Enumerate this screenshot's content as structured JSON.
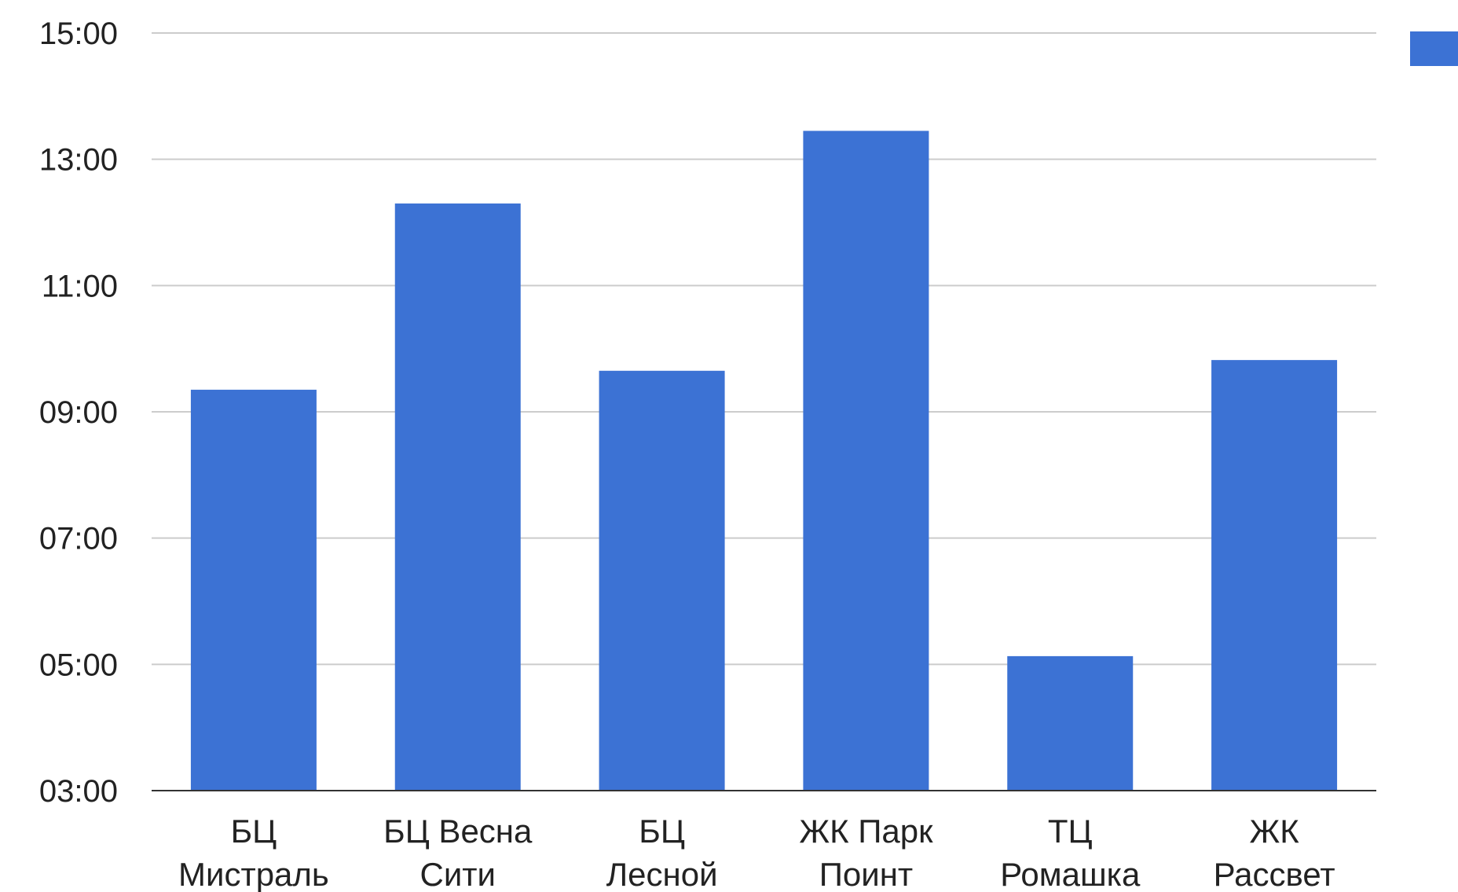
{
  "chart_data": {
    "type": "bar",
    "categories": [
      [
        "БЦ",
        "Мистраль"
      ],
      [
        "БЦ Весна",
        "Сити"
      ],
      [
        "БЦ",
        "Лесной"
      ],
      [
        "ЖК Парк",
        "Поинт"
      ],
      [
        "ТЦ",
        "Ромашка"
      ],
      [
        "ЖК",
        "Рассвет"
      ]
    ],
    "values": [
      9.35,
      12.3,
      9.65,
      13.45,
      5.13,
      9.82
    ],
    "yticks": [
      {
        "value": 3,
        "label": "03:00"
      },
      {
        "value": 5,
        "label": "05:00"
      },
      {
        "value": 7,
        "label": "07:00"
      },
      {
        "value": 9,
        "label": "09:00"
      },
      {
        "value": 11,
        "label": "11:00"
      },
      {
        "value": 13,
        "label": "13:00"
      },
      {
        "value": 15,
        "label": "15:00"
      }
    ],
    "ylim": [
      3,
      15
    ],
    "grid": true,
    "legend": "right",
    "colors": {
      "bar": "#3c72d4",
      "grid": "#cccccc",
      "axis": "#333333"
    }
  }
}
